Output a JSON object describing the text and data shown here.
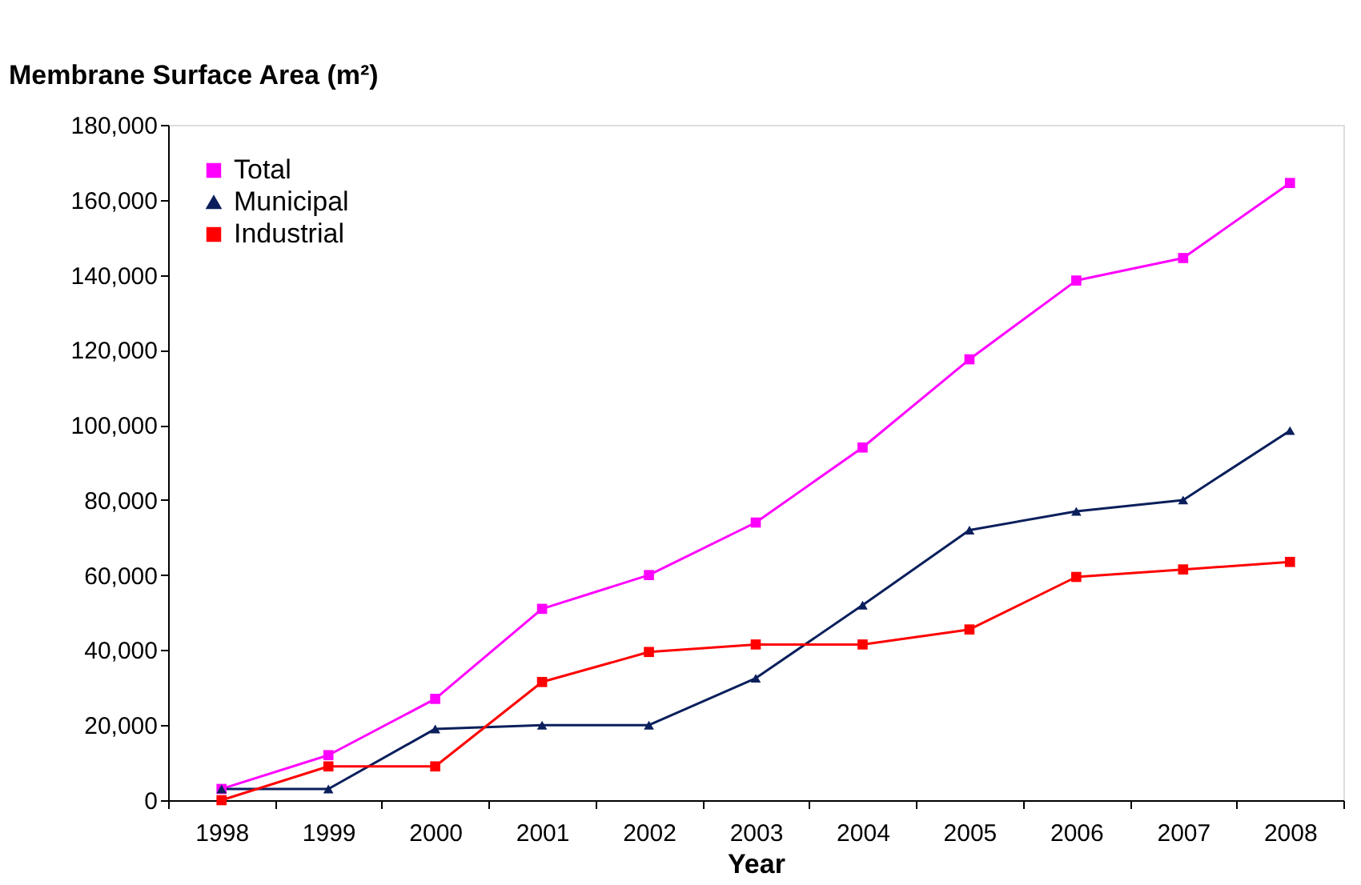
{
  "chart_data": {
    "type": "line",
    "ylabel": "Membrane Surface Area (m²)",
    "xlabel": "Year",
    "categories": [
      "1998",
      "1999",
      "2000",
      "2001",
      "2002",
      "2003",
      "2004",
      "2005",
      "2006",
      "2007",
      "2008"
    ],
    "series": [
      {
        "name": "Total",
        "color": "#ff00ff",
        "marker": "square",
        "values": [
          3000,
          12000,
          27000,
          51000,
          60000,
          74000,
          94000,
          117500,
          138500,
          144500,
          164500
        ]
      },
      {
        "name": "Municipal",
        "color": "#0a1f5c",
        "marker": "triangle",
        "values": [
          3000,
          3000,
          19000,
          20000,
          20000,
          32500,
          52000,
          72000,
          77000,
          80000,
          98500
        ]
      },
      {
        "name": "Industrial",
        "color": "#ff0000",
        "marker": "square",
        "values": [
          0,
          9000,
          9000,
          31500,
          39500,
          41500,
          41500,
          45500,
          59500,
          61500,
          63500
        ]
      }
    ],
    "ylim": [
      0,
      180000
    ],
    "yticks": [
      0,
      {
        "value": 20000,
        "label": "20,000"
      },
      {
        "value": 40000,
        "label": "40,000"
      },
      {
        "value": 60000,
        "label": "60,000"
      },
      {
        "value": 80000,
        "label": "80,000"
      },
      {
        "value": 100000,
        "label": "100,000"
      },
      {
        "value": 120000,
        "label": "120,000"
      },
      {
        "value": 140000,
        "label": "140,000"
      },
      {
        "value": 160000,
        "label": "160,000"
      },
      {
        "value": 180000,
        "label": "180,000"
      }
    ],
    "grid": false,
    "legend": "top left",
    "line_style": "solid"
  }
}
